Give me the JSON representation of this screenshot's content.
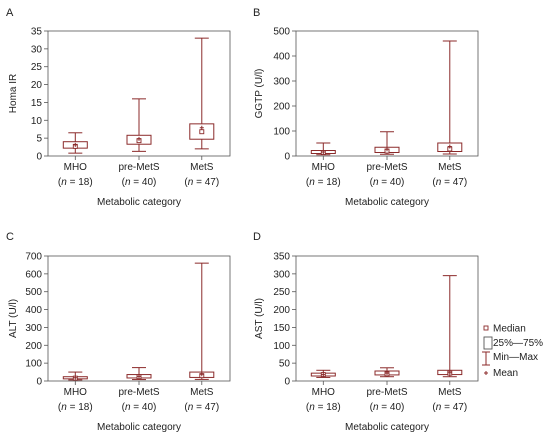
{
  "box_color": "#8b2a2a",
  "axis_color": "#555555",
  "legend": {
    "median": "Median",
    "box": "25%—75%",
    "whisker": "Min—Max",
    "mean": "Mean"
  },
  "chart_data": [
    {
      "type": "box",
      "panel_letter": "A",
      "ylabel": "Homa IR",
      "xlabel": "Metabolic category",
      "ylim": [
        0,
        35
      ],
      "yticks": [
        0,
        5,
        10,
        15,
        20,
        25,
        30,
        35
      ],
      "grid": false,
      "categories": [
        {
          "name": "MHO",
          "n": "(n = 18)",
          "min": 0.8,
          "q1": 2.2,
          "median": 2.7,
          "q3": 4.0,
          "max": 6.5,
          "mean": 3.1
        },
        {
          "name": "pre-MetS",
          "n": "(n = 40)",
          "min": 1.3,
          "q1": 3.3,
          "median": 4.3,
          "q3": 5.8,
          "max": 16.0,
          "mean": 4.8
        },
        {
          "name": "MetS",
          "n": "(n = 47)",
          "min": 2.0,
          "q1": 4.7,
          "median": 6.8,
          "q3": 9.0,
          "max": 33.0,
          "mean": 7.9
        }
      ]
    },
    {
      "type": "box",
      "panel_letter": "B",
      "ylabel": "GGTP (U/l)",
      "xlabel": "Metabolic category",
      "ylim": [
        0,
        500
      ],
      "yticks": [
        0,
        100,
        200,
        300,
        400,
        500
      ],
      "grid": false,
      "categories": [
        {
          "name": "MHO",
          "n": "(n = 18)",
          "min": 5,
          "q1": 10,
          "median": 14,
          "q3": 22,
          "max": 52,
          "mean": 16
        },
        {
          "name": "pre-MetS",
          "n": "(n = 40)",
          "min": 7,
          "q1": 14,
          "median": 20,
          "q3": 35,
          "max": 97,
          "mean": 27
        },
        {
          "name": "MetS",
          "n": "(n = 47)",
          "min": 8,
          "q1": 18,
          "median": 28,
          "q3": 52,
          "max": 460,
          "mean": 38
        }
      ]
    },
    {
      "type": "box",
      "panel_letter": "C",
      "ylabel": "ALT (U/l)",
      "xlabel": "Metabolic category",
      "ylim": [
        0,
        700
      ],
      "yticks": [
        0,
        100,
        200,
        300,
        400,
        500,
        600,
        700
      ],
      "grid": false,
      "categories": [
        {
          "name": "MHO",
          "n": "(n = 18)",
          "min": 6,
          "q1": 12,
          "median": 16,
          "q3": 24,
          "max": 50,
          "mean": 18
        },
        {
          "name": "pre-MetS",
          "n": "(n = 40)",
          "min": 8,
          "q1": 17,
          "median": 24,
          "q3": 36,
          "max": 75,
          "mean": 26
        },
        {
          "name": "MetS",
          "n": "(n = 47)",
          "min": 9,
          "q1": 20,
          "median": 30,
          "q3": 50,
          "max": 660,
          "mean": 38
        }
      ]
    },
    {
      "type": "box",
      "panel_letter": "D",
      "ylabel": "AST (U/l)",
      "xlabel": "Metabolic category",
      "ylim": [
        0,
        350
      ],
      "yticks": [
        0,
        50,
        100,
        150,
        200,
        250,
        300,
        350
      ],
      "grid": false,
      "categories": [
        {
          "name": "MHO",
          "n": "(n = 18)",
          "min": 10,
          "q1": 14,
          "median": 18,
          "q3": 22,
          "max": 30,
          "mean": 18
        },
        {
          "name": "pre-MetS",
          "n": "(n = 40)",
          "min": 12,
          "q1": 17,
          "median": 20,
          "q3": 28,
          "max": 37,
          "mean": 22
        },
        {
          "name": "MetS",
          "n": "(n = 47)",
          "min": 12,
          "q1": 18,
          "median": 22,
          "q3": 30,
          "max": 295,
          "mean": 23
        }
      ]
    }
  ]
}
